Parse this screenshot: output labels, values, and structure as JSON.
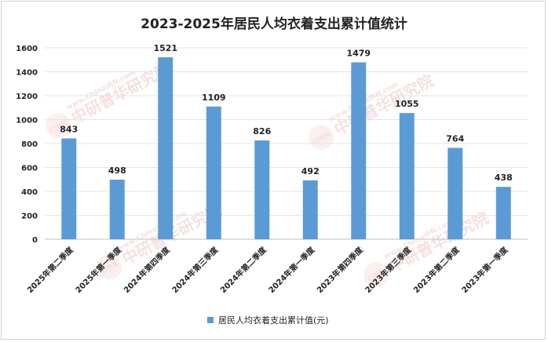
{
  "watermark": {
    "logo_text": "CIRN",
    "site_text": "www.ChinaIRN.com",
    "brand_text": "中研普华研究院"
  },
  "chart_data": {
    "type": "bar",
    "title": "2023-2025年居民人均衣着支出累计值统计",
    "categories": [
      "2025年第二季度",
      "2025年第一季度",
      "2024年第四季度",
      "2024年第三季度",
      "2024年第二季度",
      "2024年第一季度",
      "2023年第四季度",
      "2023年第三季度",
      "2023年第二季度",
      "2023年第一季度"
    ],
    "series": [
      {
        "name": "居民人均衣着支出累计值(元)",
        "values": [
          843,
          498,
          1521,
          1109,
          826,
          492,
          1479,
          1055,
          764,
          438
        ],
        "color": "#5b9bd5"
      }
    ],
    "ylim": [
      0,
      1600
    ],
    "yticks": [
      0,
      200,
      400,
      600,
      800,
      1000,
      1200,
      1400,
      1600
    ],
    "grid": true,
    "legend_position": "bottom"
  }
}
